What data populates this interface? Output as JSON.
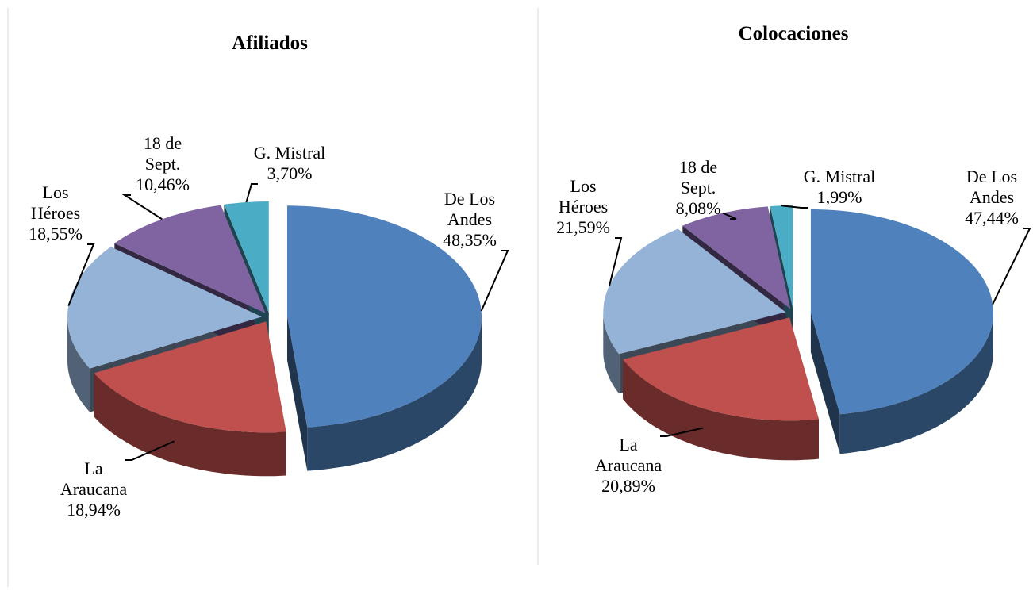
{
  "chart_data": [
    {
      "type": "pie",
      "title": "Afiliados",
      "categories": [
        "De Los\nAndes",
        "La\nAraucana",
        "Los\nHéroes",
        "18 de\nSept.",
        "G. Mistral"
      ],
      "values": [
        48.35,
        18.94,
        18.55,
        10.46,
        3.7
      ],
      "value_labels": [
        "48,35%",
        "18,94%",
        "18,55%",
        "10,46%",
        "3,70%"
      ],
      "colors": [
        "#4f81bd",
        "#c0504d",
        "#95b3d7",
        "#8064a2",
        "#4bacc6"
      ]
    },
    {
      "type": "pie",
      "title": "Colocaciones",
      "categories": [
        "De Los\nAndes",
        "La\nAraucana",
        "Los\nHéroes",
        "18 de\nSept.",
        "G. Mistral"
      ],
      "values": [
        47.44,
        20.89,
        21.59,
        8.08,
        1.99
      ],
      "value_labels": [
        "47,44%",
        "20,89%",
        "21,59%",
        "8,08%",
        "1,99%"
      ],
      "colors": [
        "#4f81bd",
        "#c0504d",
        "#95b3d7",
        "#8064a2",
        "#4bacc6"
      ]
    }
  ]
}
